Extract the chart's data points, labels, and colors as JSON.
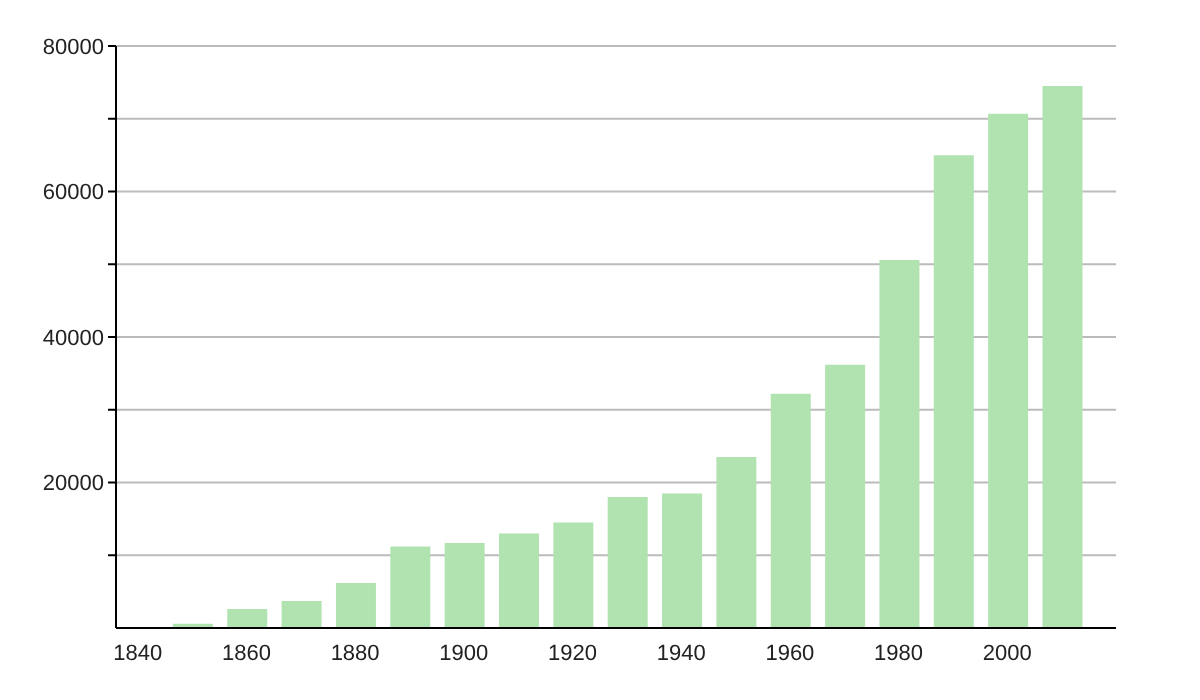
{
  "chart_data": {
    "type": "bar",
    "x": [
      1850,
      1860,
      1870,
      1880,
      1890,
      1900,
      1910,
      1920,
      1930,
      1940,
      1950,
      1960,
      1970,
      1980,
      1990,
      2000,
      2010
    ],
    "values": [
      600,
      2600,
      3700,
      6200,
      11200,
      11700,
      13000,
      14500,
      18000,
      18500,
      23500,
      32200,
      36200,
      50600,
      65000,
      70700,
      74500
    ],
    "color": "#b0e3b0",
    "xlim": [
      1836,
      2020
    ],
    "xticks": [
      1840,
      1860,
      1880,
      1900,
      1920,
      1940,
      1960,
      1980,
      2000
    ],
    "ylim": [
      0,
      80000
    ],
    "yticks": [
      {
        "value": 10000,
        "label": null
      },
      20000,
      {
        "value": 30000,
        "label": null
      },
      40000,
      {
        "value": 50000,
        "label": null
      },
      60000,
      {
        "value": 70000,
        "label": null
      },
      80000
    ],
    "grid": "y"
  }
}
